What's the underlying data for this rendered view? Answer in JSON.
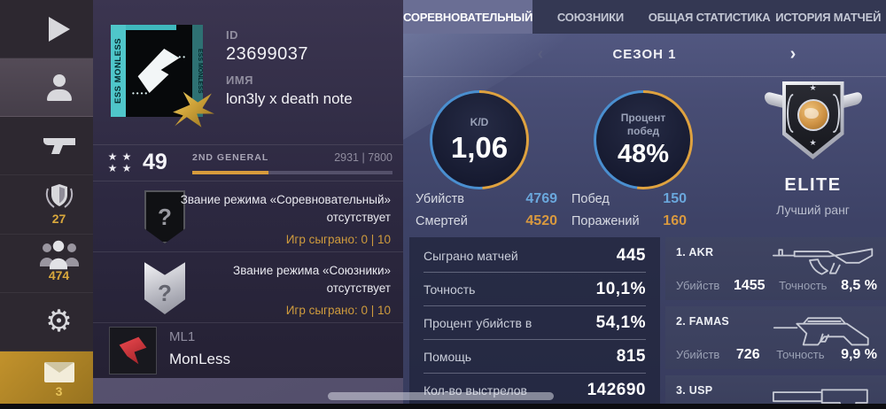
{
  "colors": {
    "accent_gold": "#d79b3c",
    "accent_blue": "#5b9bd5",
    "ring_orange": "#dfa23f",
    "ring_blue": "#4a8fd0",
    "sidebar_gold": "#b88a28"
  },
  "icons": {
    "star": "★",
    "gear": "⚙",
    "question": "?"
  },
  "sidebar": {
    "items": [
      {
        "name": "play"
      },
      {
        "name": "profile",
        "selected": true
      },
      {
        "name": "weapons"
      },
      {
        "name": "achievements",
        "badge": "27"
      },
      {
        "name": "friends",
        "badge": "474"
      },
      {
        "name": "settings"
      },
      {
        "name": "mail",
        "badge": "3",
        "highlighted": true
      }
    ]
  },
  "profile": {
    "id_label": "ID",
    "id_value": "23699037",
    "name_label": "ИМЯ",
    "name_value": "lon3ly x death note",
    "avatar_side_text": "ESS MONLESS",
    "avatar_side_text_right": "ESS MONLESS",
    "avatar_dots": "••••",
    "level": {
      "value": "49",
      "rank_label": "2ND GENERAL",
      "xp": "2931 | 7800",
      "progress_pct": 38
    },
    "ranks": [
      {
        "line1": "Звание режима «Соревновательный»",
        "line2": "отсутствует",
        "games": "Игр сыграно: 0 | 10"
      },
      {
        "line1": "Звание режима «Союзники»",
        "line2": "отсутствует",
        "games": "Игр сыграно: 0 | 10"
      }
    ],
    "clan": {
      "tag": "ML1",
      "name": "MonLess"
    }
  },
  "tabs": [
    {
      "label": "СОРЕВНОВАТЕЛЬНЫЙ",
      "active": true
    },
    {
      "label": "СОЮЗНИКИ",
      "active": false
    },
    {
      "label": "ОБЩАЯ СТАТИСТИКА",
      "active": false
    },
    {
      "label": "ИСТОРИЯ МАТЧЕЙ",
      "active": false
    }
  ],
  "season": {
    "label": "СЕЗОН 1",
    "prev_icon": "‹",
    "next_icon": "›"
  },
  "kd": {
    "label": "K/D",
    "value": "1,06",
    "ring_split": 49,
    "kills_label": "Убийств",
    "kills": "4769",
    "deaths_label": "Смертей",
    "deaths": "4520"
  },
  "winrate": {
    "label_line1": "Процент",
    "label_line2": "побед",
    "value": "48%",
    "ring_split": 52,
    "wins_label": "Побед",
    "wins": "150",
    "losses_label": "Поражений",
    "losses": "160"
  },
  "best_rank": {
    "title": "ELITE",
    "subtitle": "Лучший ранг"
  },
  "stats": [
    {
      "label": "Сыграно матчей",
      "value": "445"
    },
    {
      "label": "Точность",
      "value": "10,1%"
    },
    {
      "label": "Процент убийств в",
      "value": "54,1%"
    },
    {
      "label": "Помощь",
      "value": "815"
    },
    {
      "label": "Кол-во выстрелов",
      "value": "142690"
    }
  ],
  "weapons": [
    {
      "name": "1. AKR",
      "kills_label": "Убийств",
      "kills": "1455",
      "acc_label": "Точность",
      "acc": "8,5 %"
    },
    {
      "name": "2. FAMAS",
      "kills_label": "Убийств",
      "kills": "726",
      "acc_label": "Точность",
      "acc": "9,9 %"
    },
    {
      "name": "3. USP"
    }
  ]
}
